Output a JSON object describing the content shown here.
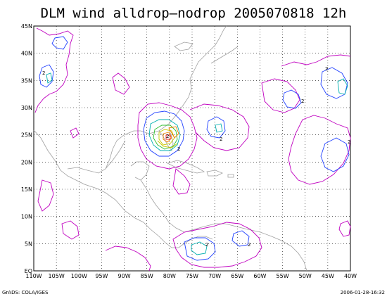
{
  "title": "DLM wind alldrop–nodrop 2005070818 12h",
  "footer": {
    "left": "GrADS: COLA/IGES",
    "right": "2006-01-28-16:32"
  },
  "map": {
    "lon_min": -110,
    "lon_max": -40,
    "lat_min": 0,
    "lat_max": 45,
    "lon_labels": [
      "110W",
      "105W",
      "100W",
      "95W",
      "90W",
      "85W",
      "80W",
      "75W",
      "70W",
      "65W",
      "60W",
      "55W",
      "50W",
      "45W",
      "40W"
    ],
    "lat_labels": [
      "EQ",
      "5N",
      "10N",
      "15N",
      "20N",
      "25N",
      "30N",
      "35N",
      "40N",
      "45N"
    ],
    "grid_style": "dotted"
  },
  "colors": {
    "contour_magenta": "#c000c0",
    "contour_blue": "#2040ff",
    "contour_cyan": "#00b0b0",
    "contour_green": "#30c030",
    "contour_yellow": "#c8c800",
    "contour_orange": "#f08000",
    "contour_red": "#e02020",
    "coastline": "#a0a0a0"
  },
  "contour_labels": [
    "2",
    "2",
    "2",
    "2",
    "2",
    "2",
    "2",
    "2",
    "2"
  ]
}
